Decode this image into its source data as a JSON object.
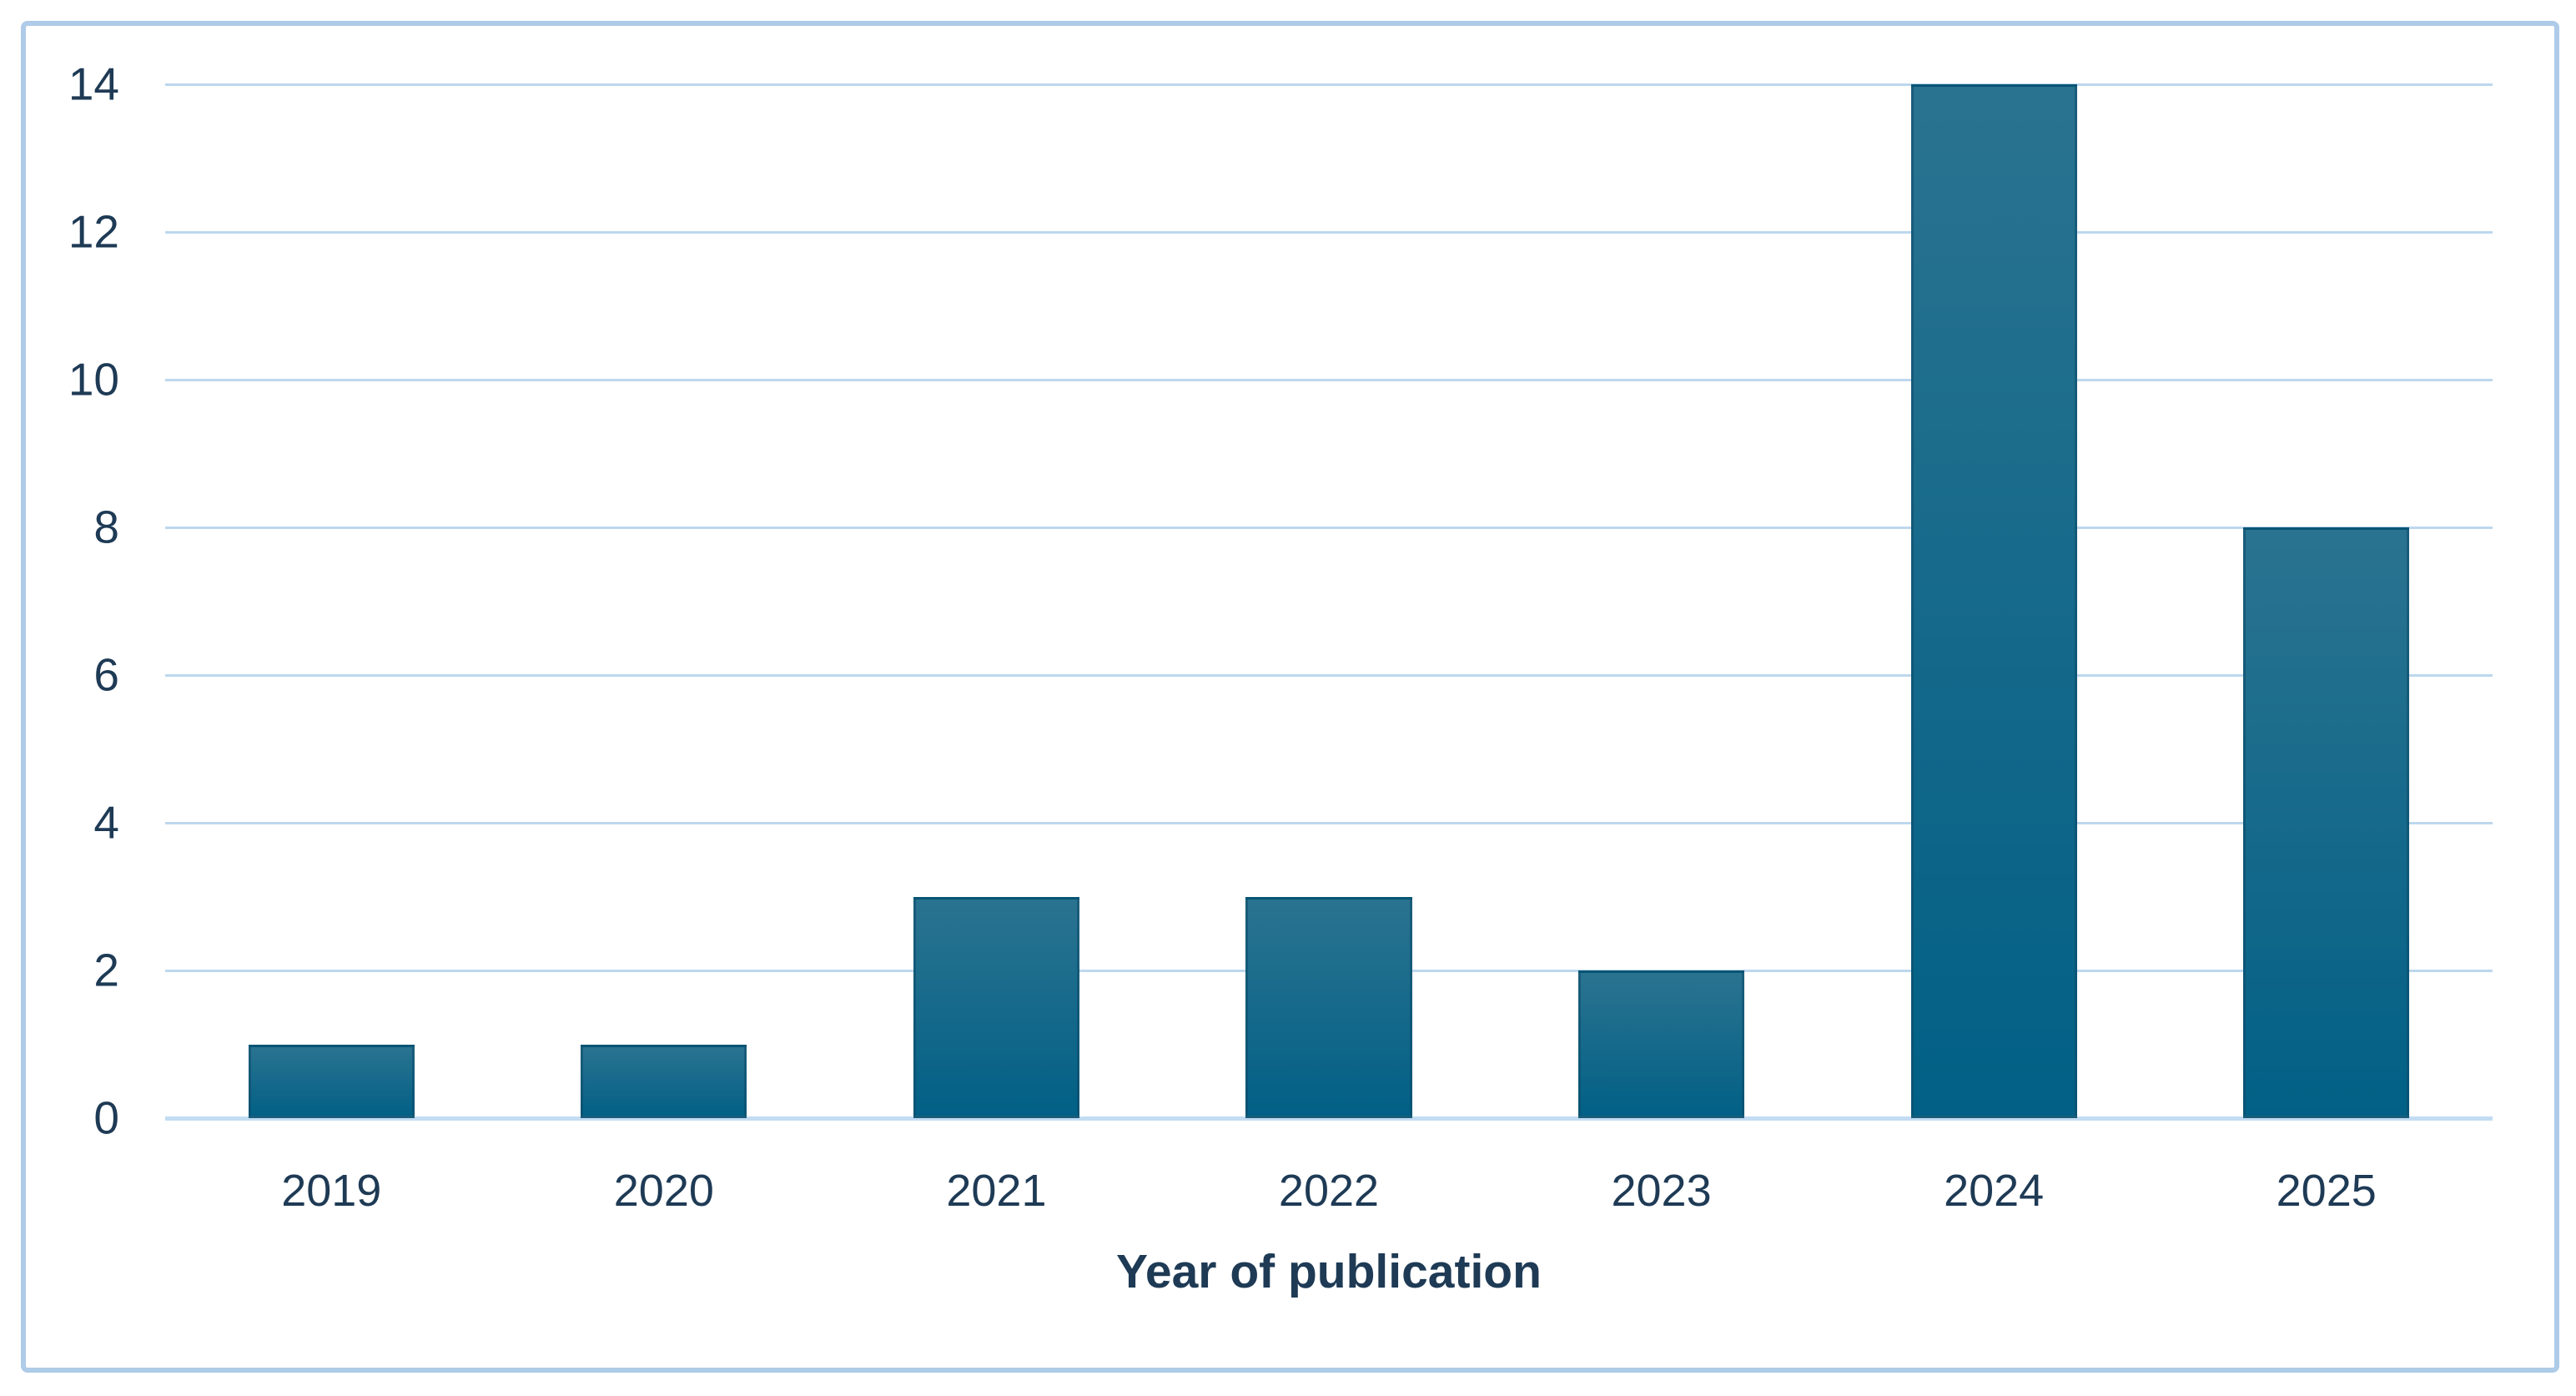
{
  "chart_data": {
    "type": "bar",
    "categories": [
      "2019",
      "2020",
      "2021",
      "2022",
      "2023",
      "2024",
      "2025"
    ],
    "values": [
      1,
      1,
      3,
      3,
      2,
      14,
      8
    ],
    "xlabel": "Year of publication",
    "ylabel": "",
    "ylim": [
      0,
      14
    ],
    "ytick_step": 2,
    "yticks": [
      0,
      2,
      4,
      6,
      8,
      10,
      12,
      14
    ],
    "grid": true,
    "legend_position": "none",
    "bar_width_fraction": 0.5,
    "colors": {
      "bar_gradient_top": "#2a7390",
      "bar_gradient_bottom": "#026086",
      "bar_border": "#0d4a68",
      "gridline": "#bdd7ee",
      "axis_line": "#c3dcf3",
      "figure_border": "#aecbe8",
      "label_text": "#1e3a55",
      "background": "#ffffff"
    }
  }
}
